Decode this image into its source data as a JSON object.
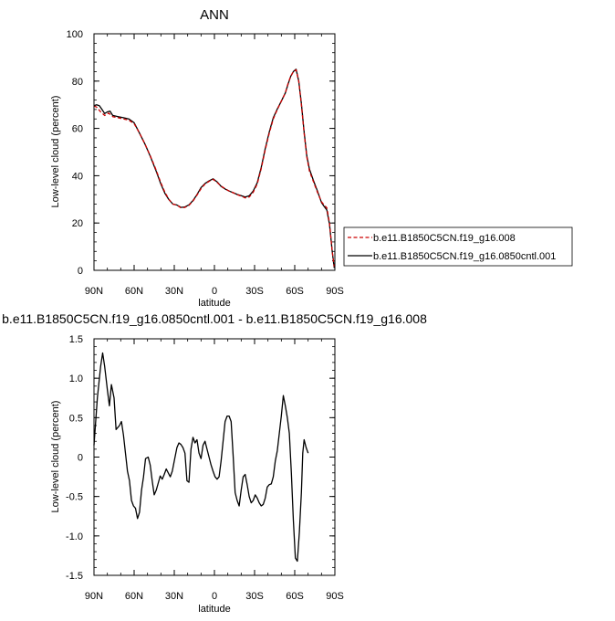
{
  "chart_data": [
    {
      "type": "line",
      "title": "ANN",
      "xlabel": "latitude",
      "ylabel": "Low-level cloud (percent)",
      "xlim": [
        -90,
        90
      ],
      "ylim": [
        0,
        100
      ],
      "x_ticks": [
        -90,
        -60,
        -30,
        0,
        30,
        60,
        90
      ],
      "x_tick_labels": [
        "90N",
        "60N",
        "30N",
        "0",
        "30S",
        "60S",
        "90S"
      ],
      "y_ticks": [
        0,
        20,
        40,
        60,
        80,
        100
      ],
      "y_tick_labels": [
        "0",
        "20",
        "40",
        "60",
        "80",
        "100"
      ],
      "legend_position": "outside-right",
      "series": [
        {
          "name": "b.e11.B1850C5CN.f19_g16.008",
          "color": "#cc0000",
          "dash": "dashed",
          "points": [
            [
              -90,
              69.5
            ],
            [
              -88,
              69
            ],
            [
              -85,
              67
            ],
            [
              -82,
              65.5
            ],
            [
              -79,
              66.5
            ],
            [
              -76,
              65
            ],
            [
              -72,
              64.5
            ],
            [
              -68,
              64
            ],
            [
              -64,
              63.5
            ],
            [
              -60,
              62
            ],
            [
              -56,
              58
            ],
            [
              -52,
              53.5
            ],
            [
              -48,
              48.5
            ],
            [
              -44,
              43
            ],
            [
              -40,
              37
            ],
            [
              -37,
              33
            ],
            [
              -34,
              30
            ],
            [
              -31,
              28
            ],
            [
              -28,
              27.6
            ],
            [
              -25,
              26.4
            ],
            [
              -22,
              26.6
            ],
            [
              -19,
              27.5
            ],
            [
              -16,
              29.3
            ],
            [
              -13,
              31.8
            ],
            [
              -10,
              34.5
            ],
            [
              -7,
              36.5
            ],
            [
              -4,
              37.6
            ],
            [
              -1,
              38.5
            ],
            [
              2,
              37.2
            ],
            [
              5,
              35.6
            ],
            [
              8,
              34.5
            ],
            [
              11,
              33.5
            ],
            [
              14,
              32.8
            ],
            [
              17,
              32
            ],
            [
              20,
              31.4
            ],
            [
              23,
              30.6
            ],
            [
              26,
              31
            ],
            [
              29,
              33
            ],
            [
              32,
              36.5
            ],
            [
              35,
              43
            ],
            [
              38,
              51
            ],
            [
              41,
              58
            ],
            [
              44,
              64
            ],
            [
              47,
              68
            ],
            [
              50,
              71.5
            ],
            [
              53,
              75
            ],
            [
              55,
              79
            ],
            [
              57,
              82
            ],
            [
              59,
              84
            ],
            [
              61,
              84.8
            ],
            [
              63,
              80
            ],
            [
              65,
              70
            ],
            [
              67,
              58
            ],
            [
              69,
              48
            ],
            [
              71,
              42
            ],
            [
              74,
              37.5
            ],
            [
              77,
              33
            ],
            [
              80,
              29
            ],
            [
              82,
              27.6
            ],
            [
              84,
              26.4
            ],
            [
              86,
              20
            ],
            [
              88,
              8
            ],
            [
              89.5,
              1.5
            ]
          ]
        },
        {
          "name": "b.e11.B1850C5CN.f19_g16.0850cntl.001",
          "color": "#000000",
          "dash": "solid",
          "points": [
            [
              -90,
              69.6
            ],
            [
              -88,
              70
            ],
            [
              -86,
              69.6
            ],
            [
              -84,
              68
            ],
            [
              -82,
              66.3
            ],
            [
              -80,
              67
            ],
            [
              -78,
              67.3
            ],
            [
              -76,
              65.5
            ],
            [
              -72,
              65
            ],
            [
              -68,
              64.5
            ],
            [
              -64,
              64
            ],
            [
              -60,
              62.4
            ],
            [
              -56,
              58
            ],
            [
              -52,
              53.5
            ],
            [
              -48,
              48.3
            ],
            [
              -44,
              42.6
            ],
            [
              -40,
              36.5
            ],
            [
              -37,
              32.6
            ],
            [
              -34,
              29.9
            ],
            [
              -31,
              28
            ],
            [
              -28,
              27.6
            ],
            [
              -25,
              26.6
            ],
            [
              -22,
              26.8
            ],
            [
              -19,
              27.7
            ],
            [
              -16,
              29.5
            ],
            [
              -13,
              32
            ],
            [
              -10,
              35
            ],
            [
              -7,
              36.7
            ],
            [
              -4,
              37.8
            ],
            [
              -1,
              38.7
            ],
            [
              2,
              37.4
            ],
            [
              5,
              35.5
            ],
            [
              8,
              34.4
            ],
            [
              11,
              33.5
            ],
            [
              14,
              32.8
            ],
            [
              17,
              32.1
            ],
            [
              20,
              31.6
            ],
            [
              23,
              31
            ],
            [
              26,
              31.5
            ],
            [
              29,
              33.5
            ],
            [
              32,
              37
            ],
            [
              35,
              43.5
            ],
            [
              38,
              51.5
            ],
            [
              41,
              58.5
            ],
            [
              44,
              64.5
            ],
            [
              47,
              68.2
            ],
            [
              50,
              71.5
            ],
            [
              53,
              75
            ],
            [
              55,
              78.7
            ],
            [
              57,
              82
            ],
            [
              59,
              84
            ],
            [
              61,
              85
            ],
            [
              63,
              80
            ],
            [
              65,
              70.5
            ],
            [
              67,
              58.5
            ],
            [
              69,
              48.5
            ],
            [
              71,
              42.8
            ],
            [
              74,
              38
            ],
            [
              77,
              33.5
            ],
            [
              80,
              28.7
            ],
            [
              82,
              27
            ],
            [
              84,
              25.5
            ],
            [
              86,
              19.5
            ],
            [
              88,
              8
            ],
            [
              89.5,
              1
            ]
          ]
        }
      ]
    },
    {
      "type": "line",
      "title": "b.e11.B1850C5CN.f19_g16.0850cntl.001 - b.e11.B1850C5CN.f19_g16.008",
      "xlabel": "latitude",
      "ylabel": "Low-level cloud (percent)",
      "xlim": [
        -90,
        90
      ],
      "ylim": [
        -1.5,
        1.5
      ],
      "x_ticks": [
        -90,
        -60,
        -30,
        0,
        30,
        60,
        90
      ],
      "x_tick_labels": [
        "90N",
        "60N",
        "30N",
        "0",
        "30S",
        "60S",
        "90S"
      ],
      "y_ticks": [
        -1.5,
        -1.0,
        -0.5,
        0,
        0.5,
        1.0,
        1.5
      ],
      "y_tick_labels": [
        "-1.5",
        "-1.0",
        "-0.5",
        "0",
        "0.5",
        "1.0",
        "1.5"
      ],
      "series": [
        {
          "color": "#000000",
          "dash": "solid",
          "points": [
            [
              -90,
              0.15
            ],
            [
              -87.5,
              0.75
            ],
            [
              -85,
              1.15
            ],
            [
              -83.5,
              1.32
            ],
            [
              -82,
              1.15
            ],
            [
              -80,
              0.85
            ],
            [
              -78.5,
              0.65
            ],
            [
              -77,
              0.92
            ],
            [
              -75,
              0.75
            ],
            [
              -73.5,
              0.35
            ],
            [
              -71,
              0.4
            ],
            [
              -69.5,
              0.45
            ],
            [
              -68,
              0.28
            ],
            [
              -66.5,
              0.05
            ],
            [
              -65,
              -0.18
            ],
            [
              -63.5,
              -0.3
            ],
            [
              -62,
              -0.55
            ],
            [
              -60.5,
              -0.62
            ],
            [
              -59,
              -0.65
            ],
            [
              -57.5,
              -0.78
            ],
            [
              -56,
              -0.7
            ],
            [
              -54.5,
              -0.42
            ],
            [
              -53,
              -0.25
            ],
            [
              -51.5,
              -0.02
            ],
            [
              -49.5,
              0
            ],
            [
              -48,
              -0.1
            ],
            [
              -46.5,
              -0.3
            ],
            [
              -45,
              -0.48
            ],
            [
              -43.5,
              -0.42
            ],
            [
              -42,
              -0.33
            ],
            [
              -40.5,
              -0.24
            ],
            [
              -39,
              -0.28
            ],
            [
              -37.5,
              -0.22
            ],
            [
              -36,
              -0.15
            ],
            [
              -34.5,
              -0.2
            ],
            [
              -33,
              -0.25
            ],
            [
              -31.5,
              -0.18
            ],
            [
              -30,
              -0.05
            ],
            [
              -28,
              0.12
            ],
            [
              -26.5,
              0.18
            ],
            [
              -25,
              0.16
            ],
            [
              -23.5,
              0.12
            ],
            [
              -22,
              0.05
            ],
            [
              -20.5,
              -0.3
            ],
            [
              -19,
              -0.32
            ],
            [
              -17.5,
              0.1
            ],
            [
              -16,
              0.25
            ],
            [
              -14.5,
              0.18
            ],
            [
              -13,
              0.22
            ],
            [
              -11.5,
              0.05
            ],
            [
              -10,
              -0.02
            ],
            [
              -8.5,
              0.15
            ],
            [
              -7,
              0.2
            ],
            [
              -5.5,
              0.1
            ],
            [
              -4,
              0
            ],
            [
              -2.5,
              -0.1
            ],
            [
              -1,
              -0.18
            ],
            [
              0.5,
              -0.25
            ],
            [
              2,
              -0.28
            ],
            [
              3.5,
              -0.25
            ],
            [
              5,
              -0.05
            ],
            [
              6.5,
              0.2
            ],
            [
              8,
              0.45
            ],
            [
              9.5,
              0.52
            ],
            [
              11,
              0.52
            ],
            [
              12.5,
              0.45
            ],
            [
              14,
              0.02
            ],
            [
              15.5,
              -0.45
            ],
            [
              17,
              -0.55
            ],
            [
              18.5,
              -0.62
            ],
            [
              20,
              -0.42
            ],
            [
              21.5,
              -0.25
            ],
            [
              23,
              -0.22
            ],
            [
              24.5,
              -0.35
            ],
            [
              26,
              -0.5
            ],
            [
              27.5,
              -0.58
            ],
            [
              29,
              -0.55
            ],
            [
              30.5,
              -0.48
            ],
            [
              32,
              -0.52
            ],
            [
              33.5,
              -0.58
            ],
            [
              35,
              -0.62
            ],
            [
              36.5,
              -0.6
            ],
            [
              38,
              -0.52
            ],
            [
              39.5,
              -0.38
            ],
            [
              41,
              -0.35
            ],
            [
              42.5,
              -0.34
            ],
            [
              44,
              -0.25
            ],
            [
              45.5,
              -0.05
            ],
            [
              47,
              0.08
            ],
            [
              48.5,
              0.3
            ],
            [
              50,
              0.52
            ],
            [
              51.5,
              0.78
            ],
            [
              53,
              0.65
            ],
            [
              54.5,
              0.5
            ],
            [
              56,
              0.3
            ],
            [
              57.5,
              -0.2
            ],
            [
              59,
              -0.8
            ],
            [
              60.5,
              -1.28
            ],
            [
              62,
              -1.32
            ],
            [
              63.5,
              -0.95
            ],
            [
              65,
              -0.45
            ],
            [
              66,
              0.05
            ],
            [
              67,
              0.22
            ],
            [
              68.5,
              0.12
            ],
            [
              70,
              0.05
            ]
          ]
        }
      ]
    }
  ]
}
